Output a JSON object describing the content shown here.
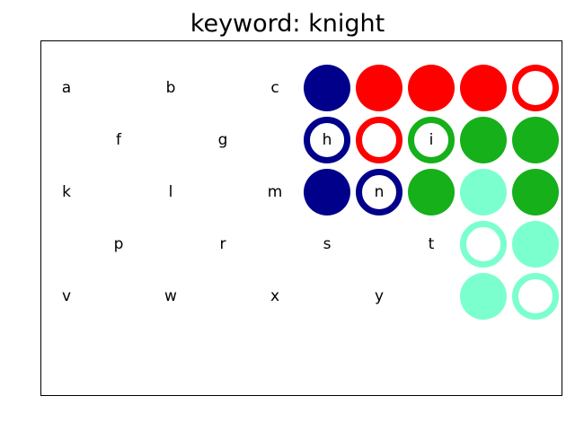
{
  "title": "keyword: knight",
  "colors": {
    "navy": "#00008b",
    "red": "#ff0000",
    "green": "#15b01a",
    "mint": "#7bffce",
    "ring_fill": "#ffffff",
    "frame": "#000000"
  },
  "board": {
    "rows": [
      {
        "letters": [
          {
            "col": 1,
            "text": "a"
          },
          {
            "col": 3,
            "text": "b"
          },
          {
            "col": 5,
            "text": "c"
          }
        ],
        "discs": [
          {
            "col": 6,
            "color": "navy",
            "style": "solid",
            "text": ""
          },
          {
            "col": 7,
            "color": "red",
            "style": "solid",
            "text": ""
          },
          {
            "col": 8,
            "color": "red",
            "style": "solid",
            "text": ""
          },
          {
            "col": 9,
            "color": "red",
            "style": "solid",
            "text": ""
          },
          {
            "col": 10,
            "color": "red",
            "style": "ring",
            "text": ""
          }
        ]
      },
      {
        "letters": [
          {
            "col": 2,
            "text": "f"
          },
          {
            "col": 4,
            "text": "g"
          }
        ],
        "discs": [
          {
            "col": 6,
            "color": "navy",
            "style": "ring",
            "text": "h"
          },
          {
            "col": 7,
            "color": "red",
            "style": "ring",
            "text": ""
          },
          {
            "col": 8,
            "color": "green",
            "style": "ring",
            "text": "i"
          },
          {
            "col": 9,
            "color": "green",
            "style": "solid",
            "text": ""
          },
          {
            "col": 10,
            "color": "green",
            "style": "solid",
            "text": ""
          }
        ]
      },
      {
        "letters": [
          {
            "col": 1,
            "text": "k"
          },
          {
            "col": 3,
            "text": "l"
          },
          {
            "col": 5,
            "text": "m"
          }
        ],
        "discs": [
          {
            "col": 6,
            "color": "navy",
            "style": "solid",
            "text": ""
          },
          {
            "col": 7,
            "color": "navy",
            "style": "ring",
            "text": "n"
          },
          {
            "col": 8,
            "color": "green",
            "style": "solid",
            "text": ""
          },
          {
            "col": 9,
            "color": "mint",
            "style": "solid",
            "text": ""
          },
          {
            "col": 10,
            "color": "green",
            "style": "solid",
            "text": ""
          }
        ]
      },
      {
        "letters": [
          {
            "col": 2,
            "text": "p"
          },
          {
            "col": 4,
            "text": "r"
          },
          {
            "col": 6,
            "text": "s"
          },
          {
            "col": 8,
            "text": "t"
          }
        ],
        "discs": [
          {
            "col": 9,
            "color": "mint",
            "style": "ring",
            "text": ""
          },
          {
            "col": 10,
            "color": "mint",
            "style": "solid",
            "text": ""
          }
        ]
      },
      {
        "letters": [
          {
            "col": 1,
            "text": "v"
          },
          {
            "col": 3,
            "text": "w"
          },
          {
            "col": 5,
            "text": "x"
          },
          {
            "col": 7,
            "text": "y"
          }
        ],
        "discs": [
          {
            "col": 9,
            "color": "mint",
            "style": "solid",
            "text": ""
          },
          {
            "col": 10,
            "color": "mint",
            "style": "ring",
            "text": ""
          }
        ]
      }
    ]
  }
}
